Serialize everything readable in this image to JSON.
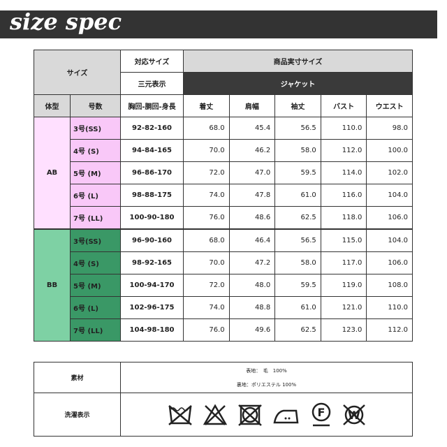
{
  "banner": {
    "title": "size spec"
  },
  "spec": {
    "size_label": "サイズ",
    "corresponding_size": "対応サイズ",
    "three_dim": "三元表示",
    "actual_size": "商品実寸サイズ",
    "jacket": "ジャケット",
    "columns": [
      "体型",
      "号数",
      "胸回-胴回-身長",
      "着丈",
      "肩幅",
      "袖丈",
      "バスト",
      "ウエスト"
    ],
    "groups": [
      {
        "type": "AB",
        "color_light": "#ffe0ff",
        "color_dark": "#f9c8f8",
        "rows": [
          {
            "size": "3号(SS)",
            "body": "92-82-160",
            "values": [
              "68.0",
              "45.4",
              "56.5",
              "110.0",
              "98.0"
            ]
          },
          {
            "size": "4号 (S)",
            "body": "94-84-165",
            "values": [
              "70.0",
              "46.2",
              "58.0",
              "112.0",
              "100.0"
            ]
          },
          {
            "size": "5号 (M)",
            "body": "96-86-170",
            "values": [
              "72.0",
              "47.0",
              "59.5",
              "114.0",
              "102.0"
            ]
          },
          {
            "size": "6号 (L)",
            "body": "98-88-175",
            "values": [
              "74.0",
              "47.8",
              "61.0",
              "116.0",
              "104.0"
            ]
          },
          {
            "size": "7号 (LL)",
            "body": "100-90-180",
            "values": [
              "76.0",
              "48.6",
              "62.5",
              "118.0",
              "106.0"
            ]
          }
        ]
      },
      {
        "type": "BB",
        "color_light": "#7ed1a4",
        "color_dark": "#3a9866",
        "rows": [
          {
            "size": "3号(SS)",
            "body": "96-90-160",
            "values": [
              "68.0",
              "46.4",
              "56.5",
              "115.0",
              "104.0"
            ]
          },
          {
            "size": "4号 (S)",
            "body": "98-92-165",
            "values": [
              "70.0",
              "47.2",
              "58.0",
              "117.0",
              "106.0"
            ]
          },
          {
            "size": "5号 (M)",
            "body": "100-94-170",
            "values": [
              "72.0",
              "48.0",
              "59.5",
              "119.0",
              "108.0"
            ]
          },
          {
            "size": "6号 (L)",
            "body": "102-96-175",
            "values": [
              "74.0",
              "48.8",
              "61.0",
              "121.0",
              "110.0"
            ]
          },
          {
            "size": "7号 (LL)",
            "body": "104-98-180",
            "values": [
              "76.0",
              "49.6",
              "62.5",
              "123.0",
              "112.0"
            ]
          }
        ]
      }
    ]
  },
  "material": {
    "label": "素材",
    "outer": "表地：　毛　100%",
    "lining": "裏地：ポリエステル 100%",
    "care_label": "洗濯表示",
    "care_icons": [
      "no-wash-icon",
      "no-bleach-icon",
      "no-tumble-dry-icon",
      "iron-medium-icon",
      "dry-clean-f-icon",
      "no-wet-clean-icon"
    ]
  }
}
